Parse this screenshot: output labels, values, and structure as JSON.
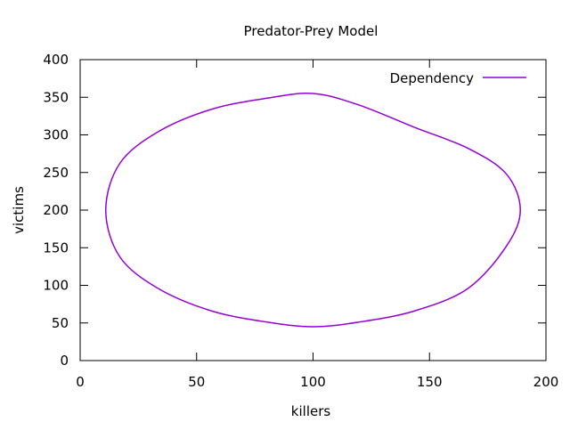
{
  "chart_data": {
    "type": "line",
    "title": "Predator-Prey Model",
    "xlabel": "killers",
    "ylabel": "victims",
    "xlim": [
      0,
      200
    ],
    "ylim": [
      0,
      400
    ],
    "xticks": [
      0,
      50,
      100,
      150,
      200
    ],
    "yticks": [
      0,
      50,
      100,
      150,
      200,
      250,
      300,
      350,
      400
    ],
    "grid": false,
    "legend": "top-right",
    "series": [
      {
        "name": "Dependency",
        "color": "#9400d3",
        "shape": "closed-ellipse",
        "x": [
          189.0,
          183.0,
          166.6,
          143.6,
          119.4,
          100.0,
          80.6,
          56.4,
          33.4,
          17.0,
          11.0,
          17.0,
          33.4,
          56.4,
          80.6,
          100.0,
          119.4,
          143.6,
          166.6,
          183.0,
          189.0
        ],
        "y": [
          200.0,
          248.0,
          282.0,
          310.0,
          340.0,
          355.0,
          349.0,
          334.0,
          304.0,
          262.0,
          200.0,
          138.0,
          96.0,
          66.0,
          51.0,
          45.0,
          51.0,
          66.0,
          96.0,
          152.0,
          200.0
        ]
      }
    ]
  }
}
